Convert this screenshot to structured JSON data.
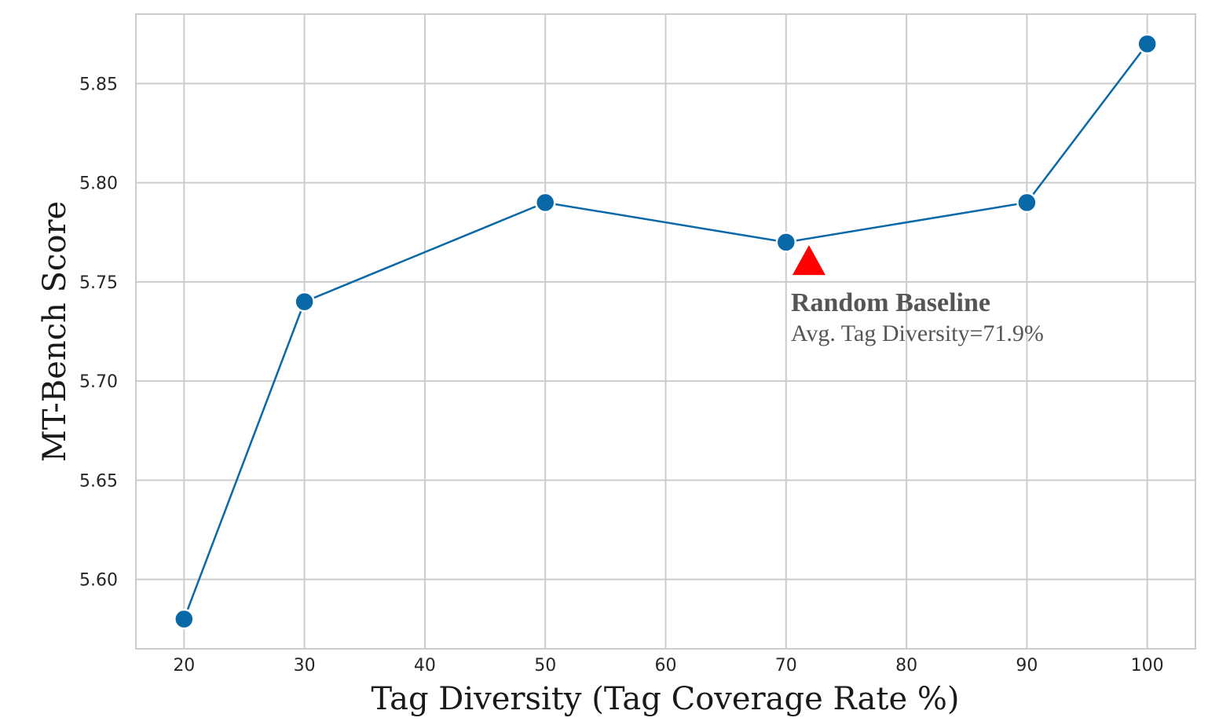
{
  "chart_data": {
    "type": "line",
    "title": "",
    "xlabel": "Tag Diversity (Tag Coverage Rate %)",
    "ylabel": "MT-Bench Score",
    "xlim": [
      16,
      104
    ],
    "ylim": [
      5.565,
      5.885
    ],
    "x_ticks": [
      20,
      30,
      40,
      50,
      60,
      70,
      80,
      90,
      100
    ],
    "y_ticks": [
      5.6,
      5.65,
      5.7,
      5.75,
      5.8,
      5.85
    ],
    "grid": true,
    "legend": "none",
    "series": [
      {
        "x": [
          20,
          30,
          50,
          70,
          90,
          100
        ],
        "y": [
          5.58,
          5.74,
          5.79,
          5.77,
          5.79,
          5.87
        ],
        "color": "#0868a8",
        "marker": "circle"
      }
    ],
    "annotations": [
      {
        "title": "Random Baseline",
        "subtitle": "Avg. Tag Diversity=71.9%",
        "x": 71.9,
        "y": 5.761,
        "marker": "triangle",
        "color": "#ff0000"
      }
    ]
  }
}
